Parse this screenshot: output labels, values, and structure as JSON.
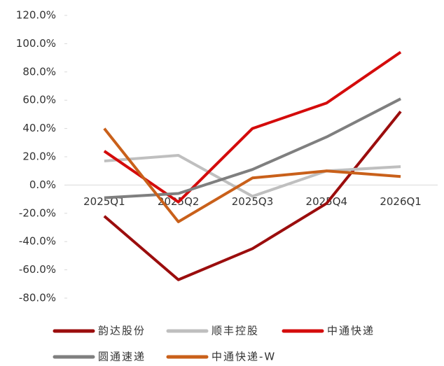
{
  "chart_data": {
    "type": "line",
    "categories": [
      "2025Q1",
      "2025Q2",
      "2025Q3",
      "2025Q4",
      "2026Q1"
    ],
    "series": [
      {
        "name": "韵达股份",
        "color": "#9b0d0d",
        "values": [
          -22,
          -67,
          -45,
          -13,
          52
        ]
      },
      {
        "name": "顺丰控股",
        "color": "#bfbfbf",
        "values": [
          17,
          21,
          -8,
          10,
          13
        ]
      },
      {
        "name": "中通快递",
        "color": "#d40b0b",
        "values": [
          24,
          -12,
          40,
          58,
          94
        ]
      },
      {
        "name": "圆通速递",
        "color": "#7f7f7f",
        "values": [
          -9,
          -6,
          11,
          34,
          61
        ]
      },
      {
        "name": "中通快递-W",
        "color": "#c9601a",
        "values": [
          40,
          -26,
          5,
          10,
          6
        ]
      }
    ],
    "ylim": [
      -80,
      120
    ],
    "yticks": [
      {
        "value": -80,
        "label": "-80.0%"
      },
      {
        "value": -60,
        "label": "-60.0%"
      },
      {
        "value": -40,
        "label": "-40.0%"
      },
      {
        "value": -20,
        "label": "-20.0%"
      },
      {
        "value": 0,
        "label": "0.0%"
      },
      {
        "value": 20,
        "label": "20.0%"
      },
      {
        "value": 40,
        "label": "40.0%"
      },
      {
        "value": 60,
        "label": "60.0%"
      },
      {
        "value": 80,
        "label": "80.0%"
      },
      {
        "value": 100,
        "label": "100.0%"
      },
      {
        "value": 120,
        "label": "120.0%"
      }
    ],
    "grid": false
  }
}
